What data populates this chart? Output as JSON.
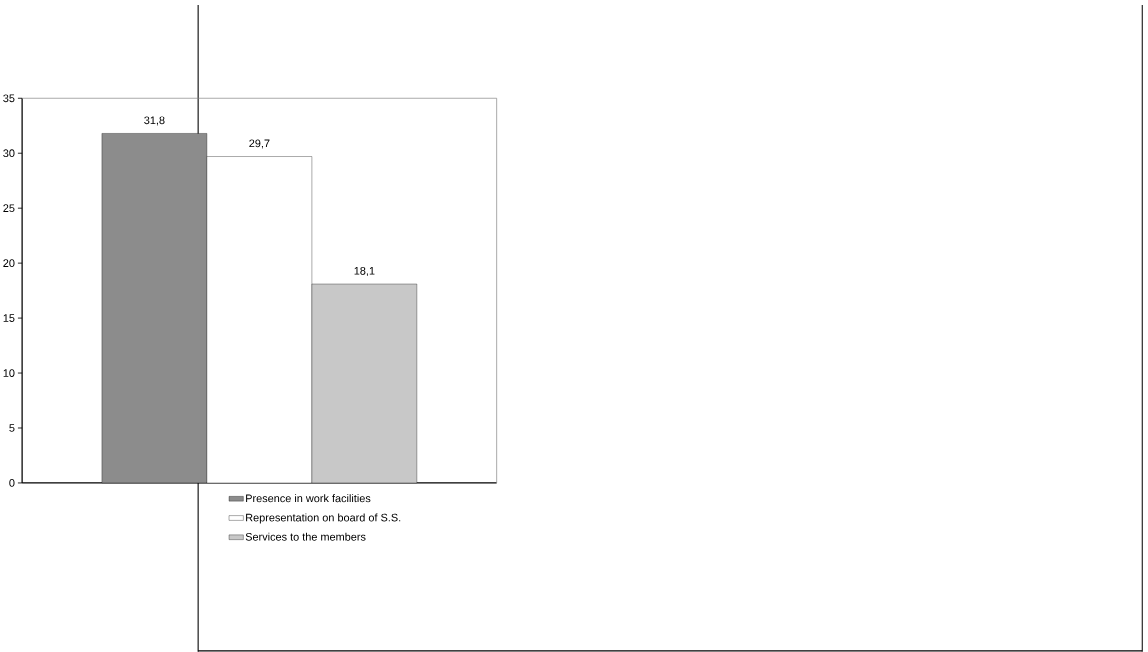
{
  "chart_data": {
    "type": "bar",
    "categories": [
      null
    ],
    "series": [
      {
        "name": "Presence in work facilities",
        "color": "#8c8c8c",
        "values": [
          31.8
        ],
        "value_labels": [
          "31,8"
        ]
      },
      {
        "name": "Representation on board of S.S.",
        "color": "#ffffff",
        "values": [
          29.7
        ],
        "value_labels": [
          "29,7"
        ]
      },
      {
        "name": "Services to the members",
        "color": "#c8c8c8",
        "values": [
          18.1
        ],
        "value_labels": [
          "18,1"
        ]
      }
    ],
    "ylim": [
      0,
      35
    ],
    "yticks": [
      0,
      5,
      10,
      15,
      20,
      25,
      30,
      35
    ],
    "grid": false,
    "legend": "bottom"
  }
}
